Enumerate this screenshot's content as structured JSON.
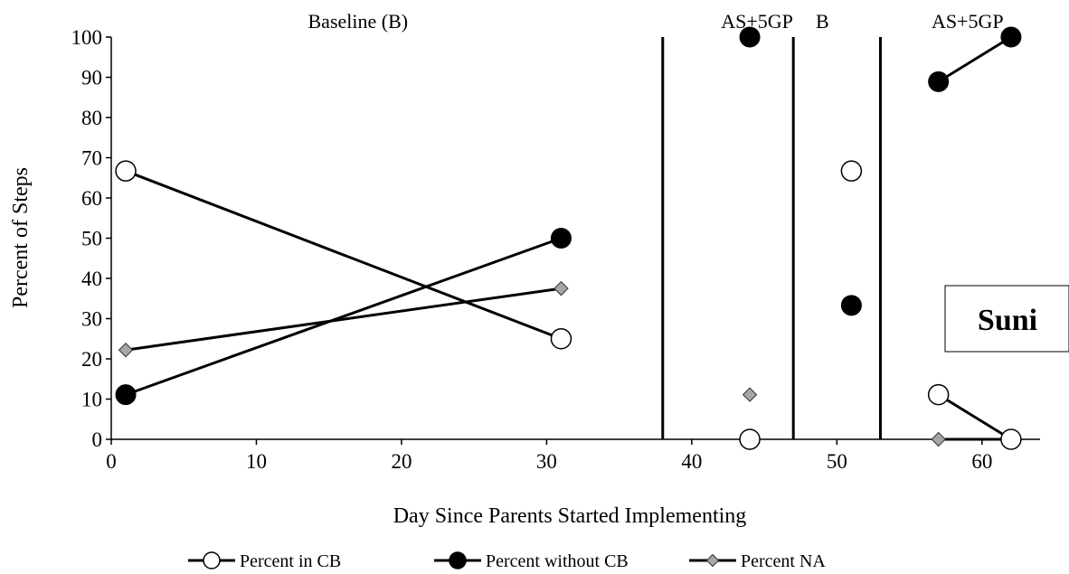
{
  "chart_data": {
    "type": "line",
    "xlabel": "Day Since Parents Started Implementing",
    "ylabel": "Percent of Steps",
    "xlim": [
      0,
      64
    ],
    "ylim": [
      0,
      100
    ],
    "x_ticks": [
      "0",
      "10",
      "20",
      "30",
      "40",
      "50",
      "60"
    ],
    "y_ticks": [
      "0",
      "10",
      "20",
      "30",
      "40",
      "50",
      "60",
      "70",
      "80",
      "90",
      "100"
    ],
    "phase_lines": [
      38,
      47,
      53
    ],
    "phases": [
      {
        "label": "Baseline (B)",
        "center_x": 17
      },
      {
        "label": "AS+5GP",
        "center_x": 44.5
      },
      {
        "label": "B",
        "center_x": 49
      },
      {
        "label": "AS+5GP",
        "center_x": 59
      }
    ],
    "name_box_label": "Suni",
    "legend_position": "bottom",
    "series": [
      {
        "name": "Percent in CB",
        "marker": "open-circle",
        "color": "#000000",
        "segments": [
          [
            {
              "x": 1,
              "y": 66.7
            },
            {
              "x": 31,
              "y": 25
            }
          ],
          [
            {
              "x": 44,
              "y": 0
            }
          ],
          [
            {
              "x": 51,
              "y": 66.7
            }
          ],
          [
            {
              "x": 57,
              "y": 11.1
            },
            {
              "x": 62,
              "y": 0
            }
          ]
        ]
      },
      {
        "name": "Percent without CB",
        "marker": "filled-circle",
        "color": "#000000",
        "segments": [
          [
            {
              "x": 1,
              "y": 11.1
            },
            {
              "x": 31,
              "y": 50
            }
          ],
          [
            {
              "x": 44,
              "y": 100
            }
          ],
          [
            {
              "x": 51,
              "y": 33.3
            }
          ],
          [
            {
              "x": 57,
              "y": 88.9
            },
            {
              "x": 62,
              "y": 100
            }
          ]
        ]
      },
      {
        "name": "Percent NA",
        "marker": "diamond",
        "color": "#a6a6a6",
        "segments": [
          [
            {
              "x": 1,
              "y": 22.2
            },
            {
              "x": 31,
              "y": 37.5
            }
          ],
          [
            {
              "x": 44,
              "y": 11.1
            }
          ],
          [
            {
              "x": 51,
              "y": 66.7
            }
          ],
          [
            {
              "x": 57,
              "y": 0
            },
            {
              "x": 62,
              "y": 0
            }
          ]
        ]
      }
    ]
  }
}
